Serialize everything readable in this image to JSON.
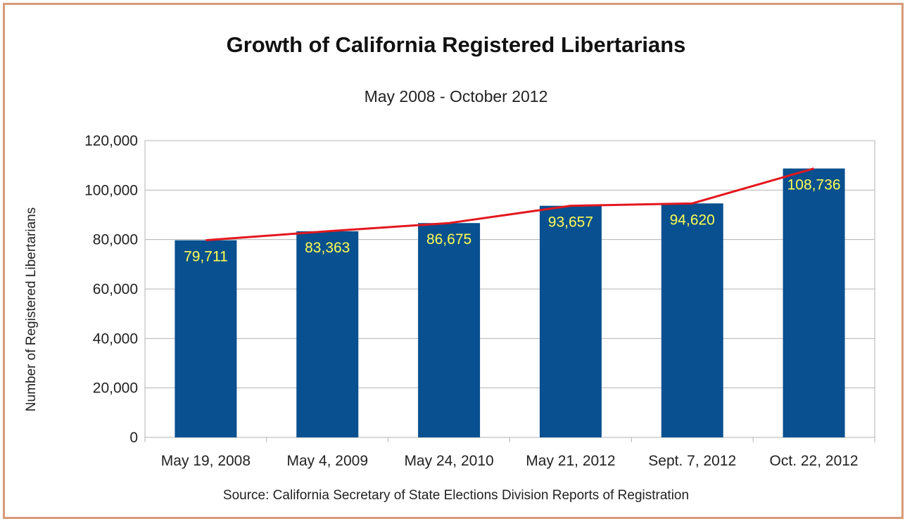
{
  "chart_data": {
    "type": "bar",
    "title": "Growth of California Registered Libertarians",
    "subtitle": "May 2008 - October 2012",
    "xlabel": "",
    "ylabel": "Number of Registered Libertarians",
    "source": "Source: California Secretary of State Elections Division Reports of Registration",
    "categories": [
      "May 19, 2008",
      "May 4, 2009",
      "May 24, 2010",
      "May 21, 2012",
      "Sept. 7, 2012",
      "Oct. 22, 2012"
    ],
    "values": [
      79711,
      83363,
      86675,
      93657,
      94620,
      108736
    ],
    "data_labels": [
      "79,711",
      "83,363",
      "86,675",
      "93,657",
      "94,620",
      "108,736"
    ],
    "ylim": [
      0,
      120000
    ],
    "yticks": [
      0,
      20000,
      40000,
      60000,
      80000,
      100000,
      120000
    ],
    "ytick_labels": [
      "0",
      "20,000",
      "40,000",
      "60,000",
      "80,000",
      "100,000",
      "120,000"
    ],
    "grid": true,
    "trend_line": true,
    "colors": {
      "bar": "#08508f",
      "line": "#e3181f",
      "data_label": "#ffff4d",
      "grid": "#b3b3b3",
      "frame": "#d69a78"
    }
  }
}
